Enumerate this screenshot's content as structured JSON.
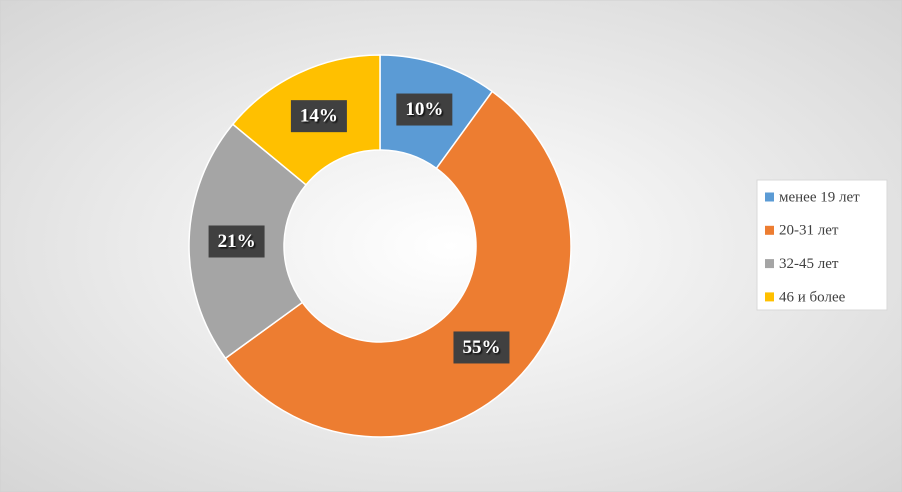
{
  "chart_data": {
    "type": "donut",
    "categories": [
      "менее 19 лет",
      "20-31 лет",
      "32-45 лет",
      "46 и более"
    ],
    "values": [
      10,
      55,
      21,
      14
    ],
    "value_labels": [
      "10%",
      "55%",
      "21%",
      "14%"
    ],
    "colors": [
      "#5b9bd5",
      "#ed7d31",
      "#a5a5a5",
      "#ffc000"
    ],
    "legend": "right"
  }
}
